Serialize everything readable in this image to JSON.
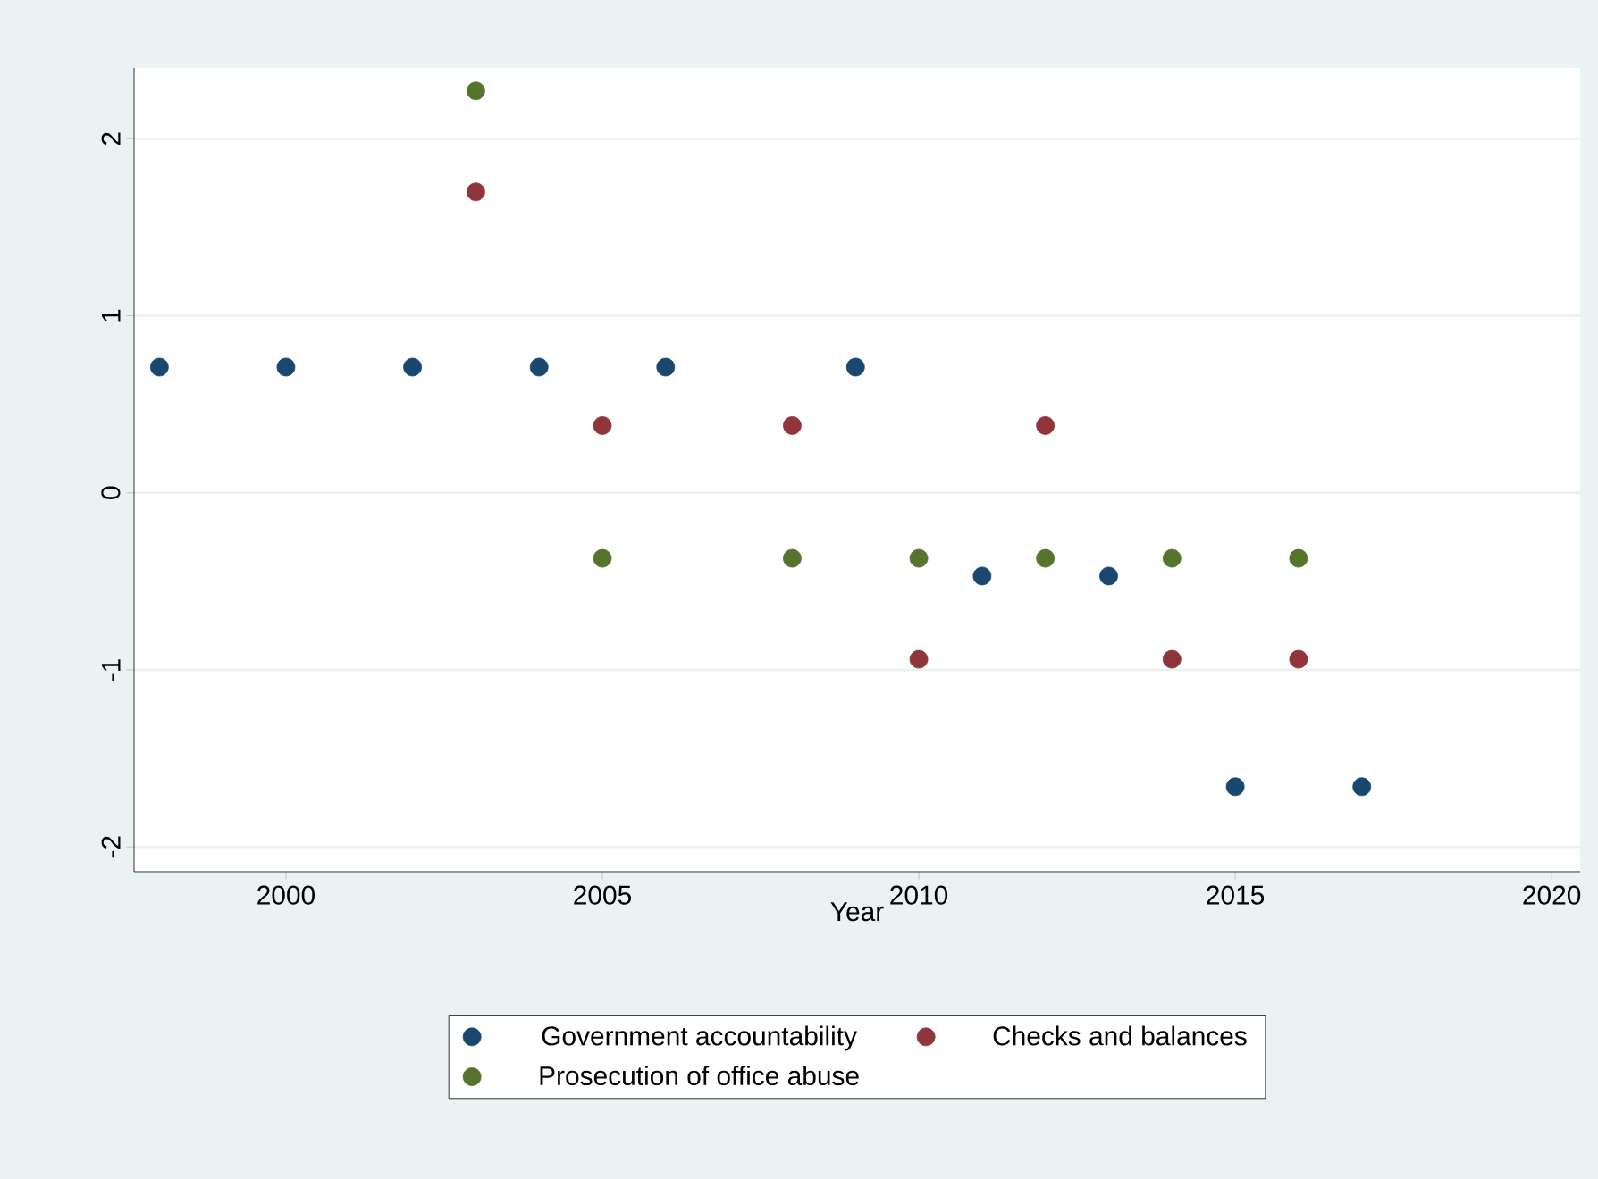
{
  "chart_data": {
    "type": "scatter",
    "xlabel": "Year",
    "xlim": [
      1997.6,
      2020.45
    ],
    "ylim": [
      -2.14,
      2.4
    ],
    "xticks": [
      2000,
      2005,
      2010,
      2015,
      2020
    ],
    "yticks": [
      -2,
      -1,
      0,
      1,
      2
    ],
    "grid": "y",
    "legend": "bottom",
    "marker": "circle",
    "series": [
      {
        "name": "Government accountability",
        "color": "#1a476f",
        "x": [
          1998,
          2000,
          2002,
          2004,
          2006,
          2009,
          2011,
          2013,
          2015,
          2017
        ],
        "values": [
          0.71,
          0.71,
          0.71,
          0.71,
          0.71,
          0.71,
          -0.47,
          -0.47,
          -1.66,
          -1.66
        ]
      },
      {
        "name": "Checks and balances",
        "color": "#90353b",
        "x": [
          2003,
          2005,
          2008,
          2010,
          2012,
          2014,
          2016
        ],
        "values": [
          1.7,
          0.38,
          0.38,
          -0.94,
          0.38,
          -0.94,
          -0.94
        ]
      },
      {
        "name": "Prosecution of office abuse",
        "color": "#55752f",
        "x": [
          2003,
          2005,
          2008,
          2010,
          2012,
          2014,
          2016
        ],
        "values": [
          2.27,
          -0.37,
          -0.37,
          -0.37,
          -0.37,
          -0.37,
          -0.37
        ]
      }
    ]
  }
}
